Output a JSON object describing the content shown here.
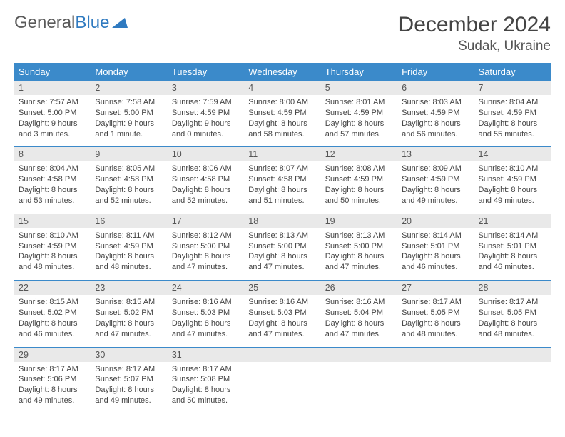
{
  "logo": {
    "text1": "General",
    "text2": "Blue"
  },
  "title": "December 2024",
  "location": "Sudak, Ukraine",
  "colors": {
    "header_bg": "#3b8aca",
    "header_text": "#ffffff",
    "daynum_bg": "#e9e9e9",
    "row_border": "#3b8aca",
    "logo_gray": "#5a5a5a",
    "logo_blue": "#2f7ac0"
  },
  "weekdays": [
    "Sunday",
    "Monday",
    "Tuesday",
    "Wednesday",
    "Thursday",
    "Friday",
    "Saturday"
  ],
  "weeks": [
    [
      {
        "d": "1",
        "sr": "7:57 AM",
        "ss": "5:00 PM",
        "dl": "9 hours and 3 minutes."
      },
      {
        "d": "2",
        "sr": "7:58 AM",
        "ss": "5:00 PM",
        "dl": "9 hours and 1 minute."
      },
      {
        "d": "3",
        "sr": "7:59 AM",
        "ss": "4:59 PM",
        "dl": "9 hours and 0 minutes."
      },
      {
        "d": "4",
        "sr": "8:00 AM",
        "ss": "4:59 PM",
        "dl": "8 hours and 58 minutes."
      },
      {
        "d": "5",
        "sr": "8:01 AM",
        "ss": "4:59 PM",
        "dl": "8 hours and 57 minutes."
      },
      {
        "d": "6",
        "sr": "8:03 AM",
        "ss": "4:59 PM",
        "dl": "8 hours and 56 minutes."
      },
      {
        "d": "7",
        "sr": "8:04 AM",
        "ss": "4:59 PM",
        "dl": "8 hours and 55 minutes."
      }
    ],
    [
      {
        "d": "8",
        "sr": "8:04 AM",
        "ss": "4:58 PM",
        "dl": "8 hours and 53 minutes."
      },
      {
        "d": "9",
        "sr": "8:05 AM",
        "ss": "4:58 PM",
        "dl": "8 hours and 52 minutes."
      },
      {
        "d": "10",
        "sr": "8:06 AM",
        "ss": "4:58 PM",
        "dl": "8 hours and 52 minutes."
      },
      {
        "d": "11",
        "sr": "8:07 AM",
        "ss": "4:58 PM",
        "dl": "8 hours and 51 minutes."
      },
      {
        "d": "12",
        "sr": "8:08 AM",
        "ss": "4:59 PM",
        "dl": "8 hours and 50 minutes."
      },
      {
        "d": "13",
        "sr": "8:09 AM",
        "ss": "4:59 PM",
        "dl": "8 hours and 49 minutes."
      },
      {
        "d": "14",
        "sr": "8:10 AM",
        "ss": "4:59 PM",
        "dl": "8 hours and 49 minutes."
      }
    ],
    [
      {
        "d": "15",
        "sr": "8:10 AM",
        "ss": "4:59 PM",
        "dl": "8 hours and 48 minutes."
      },
      {
        "d": "16",
        "sr": "8:11 AM",
        "ss": "4:59 PM",
        "dl": "8 hours and 48 minutes."
      },
      {
        "d": "17",
        "sr": "8:12 AM",
        "ss": "5:00 PM",
        "dl": "8 hours and 47 minutes."
      },
      {
        "d": "18",
        "sr": "8:13 AM",
        "ss": "5:00 PM",
        "dl": "8 hours and 47 minutes."
      },
      {
        "d": "19",
        "sr": "8:13 AM",
        "ss": "5:00 PM",
        "dl": "8 hours and 47 minutes."
      },
      {
        "d": "20",
        "sr": "8:14 AM",
        "ss": "5:01 PM",
        "dl": "8 hours and 46 minutes."
      },
      {
        "d": "21",
        "sr": "8:14 AM",
        "ss": "5:01 PM",
        "dl": "8 hours and 46 minutes."
      }
    ],
    [
      {
        "d": "22",
        "sr": "8:15 AM",
        "ss": "5:02 PM",
        "dl": "8 hours and 46 minutes."
      },
      {
        "d": "23",
        "sr": "8:15 AM",
        "ss": "5:02 PM",
        "dl": "8 hours and 47 minutes."
      },
      {
        "d": "24",
        "sr": "8:16 AM",
        "ss": "5:03 PM",
        "dl": "8 hours and 47 minutes."
      },
      {
        "d": "25",
        "sr": "8:16 AM",
        "ss": "5:03 PM",
        "dl": "8 hours and 47 minutes."
      },
      {
        "d": "26",
        "sr": "8:16 AM",
        "ss": "5:04 PM",
        "dl": "8 hours and 47 minutes."
      },
      {
        "d": "27",
        "sr": "8:17 AM",
        "ss": "5:05 PM",
        "dl": "8 hours and 48 minutes."
      },
      {
        "d": "28",
        "sr": "8:17 AM",
        "ss": "5:05 PM",
        "dl": "8 hours and 48 minutes."
      }
    ],
    [
      {
        "d": "29",
        "sr": "8:17 AM",
        "ss": "5:06 PM",
        "dl": "8 hours and 49 minutes."
      },
      {
        "d": "30",
        "sr": "8:17 AM",
        "ss": "5:07 PM",
        "dl": "8 hours and 49 minutes."
      },
      {
        "d": "31",
        "sr": "8:17 AM",
        "ss": "5:08 PM",
        "dl": "8 hours and 50 minutes."
      },
      null,
      null,
      null,
      null
    ]
  ],
  "labels": {
    "sunrise": "Sunrise:",
    "sunset": "Sunset:",
    "daylight": "Daylight:"
  }
}
